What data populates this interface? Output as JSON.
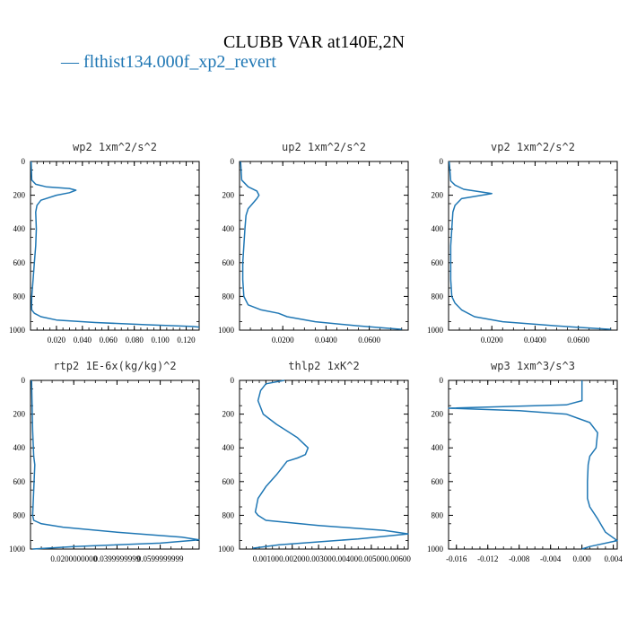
{
  "figure": {
    "title": "CLUBB VAR at140E,2N",
    "legend": "— flthist134.000f_xp2_revert",
    "line_color": "#1f77b4"
  },
  "chart_data": [
    {
      "type": "line",
      "title": "wp2   1xm^2/s^2",
      "xlim": [
        0,
        0.13
      ],
      "ylim": [
        1000,
        0
      ],
      "yticks": [
        0,
        200,
        400,
        600,
        800,
        1000
      ],
      "xticks": [
        0.02,
        0.04,
        0.06,
        0.08,
        0.1,
        0.12
      ],
      "xtick_labels": [
        "0.020",
        "0.040",
        "0.060",
        "0.080",
        "0.100",
        "0.120"
      ],
      "series": [
        {
          "x": [
            0.0005,
            0.001,
            0.004,
            0.012,
            0.03,
            0.035,
            0.03,
            0.02,
            0.008,
            0.005,
            0.004,
            0.0045,
            0.004,
            0.003,
            0.002,
            0.001,
            0.0008,
            0.001,
            0.003,
            0.008,
            0.02,
            0.05,
            0.09,
            0.125,
            0.13
          ],
          "y": [
            0,
            110,
            135,
            150,
            160,
            170,
            185,
            200,
            230,
            260,
            300,
            400,
            500,
            600,
            700,
            800,
            850,
            880,
            900,
            920,
            940,
            955,
            968,
            978,
            982
          ]
        }
      ]
    },
    {
      "type": "line",
      "title": "up2   1xm^2/s^2",
      "xlim": [
        0,
        0.078
      ],
      "ylim": [
        1000,
        0
      ],
      "yticks": [
        0,
        200,
        400,
        600,
        800,
        1000
      ],
      "xticks": [
        0.02,
        0.04,
        0.06
      ],
      "xtick_labels": [
        "0.0200",
        "0.0400",
        "0.0600"
      ],
      "series": [
        {
          "x": [
            0.0005,
            0.001,
            0.004,
            0.008,
            0.009,
            0.008,
            0.006,
            0.004,
            0.003,
            0.0025,
            0.002,
            0.0015,
            0.0015,
            0.002,
            0.004,
            0.01,
            0.018,
            0.022,
            0.035,
            0.055,
            0.075
          ],
          "y": [
            0,
            110,
            150,
            175,
            200,
            220,
            250,
            280,
            320,
            400,
            500,
            600,
            700,
            800,
            850,
            880,
            900,
            920,
            950,
            975,
            995
          ]
        }
      ]
    },
    {
      "type": "line",
      "title": "vp2   1xm^2/s^2",
      "xlim": [
        0,
        0.078
      ],
      "ylim": [
        1000,
        0
      ],
      "yticks": [
        0,
        200,
        400,
        600,
        800,
        1000
      ],
      "xticks": [
        0.02,
        0.04,
        0.06
      ],
      "xtick_labels": [
        "0.0200",
        "0.0400",
        "0.0600"
      ],
      "series": [
        {
          "x": [
            0.0003,
            0.001,
            0.003,
            0.007,
            0.02,
            0.006,
            0.003,
            0.002,
            0.0015,
            0.001,
            0.001,
            0.001,
            0.0015,
            0.003,
            0.006,
            0.012,
            0.025,
            0.05,
            0.075
          ],
          "y": [
            0,
            115,
            140,
            165,
            190,
            220,
            260,
            300,
            400,
            500,
            600,
            700,
            800,
            840,
            880,
            920,
            950,
            975,
            995
          ]
        }
      ]
    },
    {
      "type": "line",
      "title": "rtp2   1E-6x(kg/kg)^2",
      "xlim": [
        0,
        0.078
      ],
      "ylim": [
        1000,
        0
      ],
      "yticks": [
        0,
        200,
        400,
        600,
        800,
        1000
      ],
      "xticks": [
        0.02,
        0.04,
        0.06
      ],
      "xtick_labels": [
        "0.0200000000",
        "0.0399999999",
        "0.0599999999"
      ],
      "series": [
        {
          "x": [
            0.0005,
            0.001,
            0.0015,
            0.002,
            0.0015,
            0.001,
            0.0015,
            0.005,
            0.015,
            0.04,
            0.07,
            0.078,
            0.06,
            0.02,
            0.001
          ],
          "y": [
            0,
            300,
            450,
            500,
            650,
            800,
            830,
            850,
            870,
            900,
            930,
            945,
            965,
            985,
            1000
          ]
        }
      ]
    },
    {
      "type": "line",
      "title": "thlp2   1xK^2",
      "xlim": [
        0,
        0.0064
      ],
      "ylim": [
        1000,
        0
      ],
      "yticks": [
        0,
        200,
        400,
        600,
        800,
        1000
      ],
      "xticks": [
        0.001,
        0.002,
        0.003,
        0.004,
        0.005,
        0.006
      ],
      "xtick_labels": [
        "0.00100",
        "0.00200",
        "0.00300",
        "0.00400",
        "0.00500",
        "0.00600"
      ],
      "series": [
        {
          "x": [
            0.0017,
            0.001,
            0.0008,
            0.0007,
            0.0009,
            0.0014,
            0.0018,
            0.0022,
            0.0026,
            0.0025,
            0.0022,
            0.0018,
            0.0016,
            0.0014,
            0.001,
            0.0007,
            0.0006,
            0.0007,
            0.001,
            0.003,
            0.0055,
            0.0064,
            0.0045,
            0.0015,
            0.0005
          ],
          "y": [
            0,
            20,
            60,
            120,
            200,
            260,
            300,
            340,
            400,
            440,
            460,
            480,
            520,
            560,
            630,
            700,
            780,
            800,
            830,
            860,
            890,
            910,
            940,
            975,
            995
          ]
        }
      ]
    },
    {
      "type": "line",
      "title": "wp3   1xm^3/s^3",
      "xlim": [
        -0.017,
        0.0045
      ],
      "ylim": [
        1000,
        0
      ],
      "yticks": [
        0,
        200,
        400,
        600,
        800,
        1000
      ],
      "xticks": [
        -0.016,
        -0.012,
        -0.008,
        -0.004,
        0,
        0.004
      ],
      "xtick_labels": [
        "-0.016",
        "-0.012",
        "-0.008",
        "-0.004",
        "0.000",
        "0.004"
      ],
      "series": [
        {
          "x": [
            0,
            0,
            -0.002,
            -0.017,
            -0.008,
            -0.002,
            0.001,
            0.002,
            0.0018,
            0.001,
            0.0008,
            0.0007,
            0.0007,
            0.001,
            0.002,
            0.003,
            0.0045,
            0.001,
            0
          ],
          "y": [
            0,
            120,
            145,
            165,
            180,
            200,
            250,
            310,
            400,
            450,
            500,
            600,
            700,
            750,
            820,
            900,
            950,
            985,
            1000
          ]
        }
      ]
    }
  ]
}
